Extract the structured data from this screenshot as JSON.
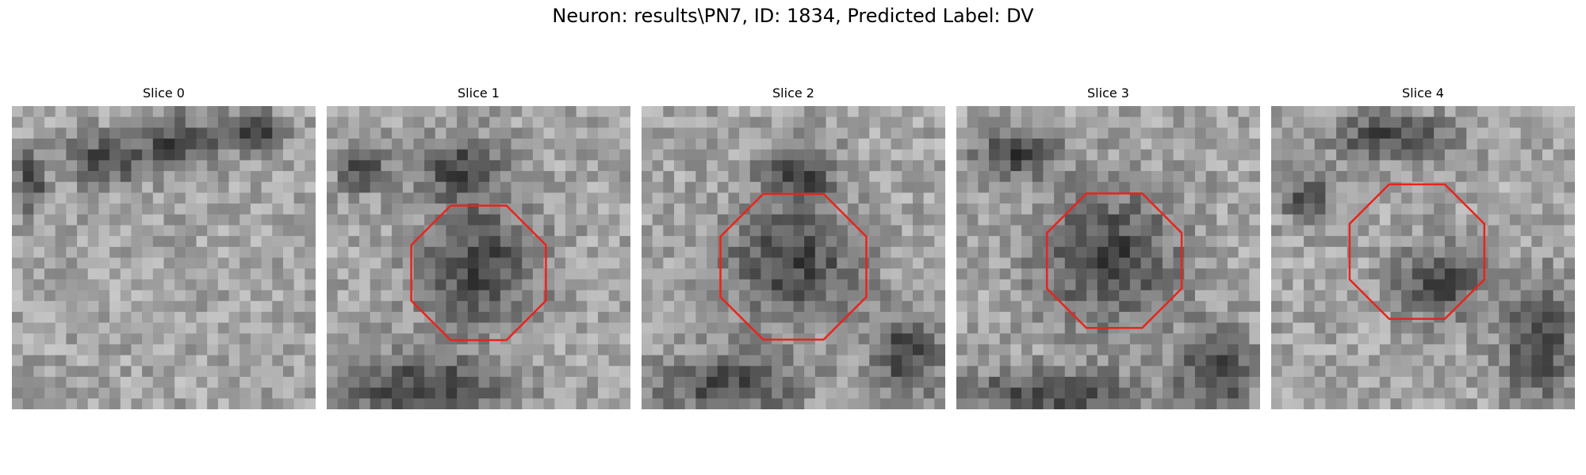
{
  "figure": {
    "title": "Neuron: results\\PN7, ID: 1834, Predicted Label: DV"
  },
  "panels": [
    {
      "title": "Slice 0",
      "has_outline": false,
      "outline_center": null,
      "outline_radius": null,
      "dark_regions": [
        [
          0.06,
          0.25,
          0.05,
          0.1
        ],
        [
          0.3,
          0.18,
          0.12,
          0.08
        ],
        [
          0.55,
          0.12,
          0.14,
          0.09
        ],
        [
          0.8,
          0.08,
          0.1,
          0.06
        ]
      ]
    },
    {
      "title": "Slice 1",
      "has_outline": true,
      "outline_center": [
        0.5,
        0.55
      ],
      "outline_radius": 0.24,
      "dark_regions": [
        [
          0.5,
          0.53,
          0.2,
          0.2
        ],
        [
          0.12,
          0.2,
          0.08,
          0.08
        ],
        [
          0.45,
          0.2,
          0.14,
          0.1
        ],
        [
          0.3,
          0.92,
          0.3,
          0.1
        ]
      ]
    },
    {
      "title": "Slice 2",
      "has_outline": true,
      "outline_center": [
        0.5,
        0.53
      ],
      "outline_radius": 0.26,
      "dark_regions": [
        [
          0.5,
          0.52,
          0.22,
          0.19
        ],
        [
          0.52,
          0.22,
          0.12,
          0.09
        ],
        [
          0.28,
          0.92,
          0.24,
          0.1
        ],
        [
          0.88,
          0.82,
          0.12,
          0.14
        ]
      ]
    },
    {
      "title": "Slice 3",
      "has_outline": true,
      "outline_center": [
        0.52,
        0.51
      ],
      "outline_radius": 0.24,
      "dark_regions": [
        [
          0.5,
          0.5,
          0.23,
          0.22
        ],
        [
          0.2,
          0.15,
          0.14,
          0.08
        ],
        [
          0.3,
          0.95,
          0.3,
          0.08
        ],
        [
          0.85,
          0.88,
          0.12,
          0.14
        ]
      ]
    },
    {
      "title": "Slice 4",
      "has_outline": true,
      "outline_center": [
        0.48,
        0.48
      ],
      "outline_radius": 0.24,
      "dark_regions": [
        [
          0.55,
          0.58,
          0.14,
          0.12
        ],
        [
          0.12,
          0.3,
          0.08,
          0.08
        ],
        [
          0.4,
          0.1,
          0.2,
          0.07
        ],
        [
          0.88,
          0.78,
          0.12,
          0.2
        ]
      ]
    }
  ],
  "colors": {
    "outline": "#e8241c",
    "background": "#ffffff"
  }
}
